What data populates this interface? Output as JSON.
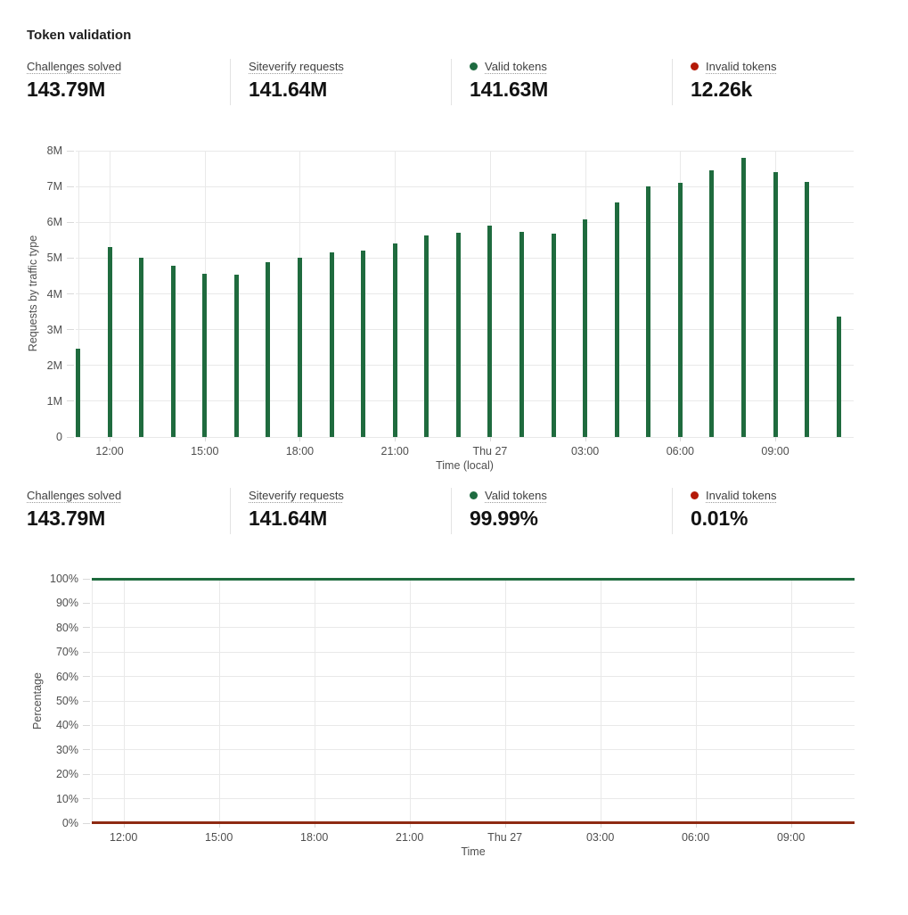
{
  "header": {
    "title": "Token validation"
  },
  "stats_top": [
    {
      "label": "Challenges solved",
      "value": "143.79M",
      "dot_color": null
    },
    {
      "label": "Siteverify requests",
      "value": "141.64M",
      "dot_color": null
    },
    {
      "label": "Valid tokens",
      "value": "141.63M",
      "dot_color": "#1e6b40"
    },
    {
      "label": "Invalid tokens",
      "value": "12.26k",
      "dot_color": "#b41907"
    }
  ],
  "stats_bottom": [
    {
      "label": "Challenges solved",
      "value": "143.79M",
      "dot_color": null
    },
    {
      "label": "Siteverify requests",
      "value": "141.64M",
      "dot_color": null
    },
    {
      "label": "Valid tokens",
      "value": "99.99%",
      "dot_color": "#1e6b40"
    },
    {
      "label": "Invalid tokens",
      "value": "0.01%",
      "dot_color": "#b41907"
    }
  ],
  "colors": {
    "green": "#1f6b3e",
    "dark_red": "#8e2a12",
    "grid": "#e9e9e9"
  },
  "chart_data": [
    {
      "type": "bar",
      "title": "",
      "ylabel": "Requests by traffic type",
      "xlabel": "Time (local)",
      "unit": "millions of requests",
      "ylim": [
        0,
        8
      ],
      "ytick_values": [
        0,
        1,
        2,
        3,
        4,
        5,
        6,
        7,
        8
      ],
      "ytick_labels": [
        "0",
        "1M",
        "2M",
        "3M",
        "4M",
        "5M",
        "6M",
        "7M",
        "8M"
      ],
      "categories": [
        "11:00",
        "12:00",
        "13:00",
        "14:00",
        "15:00",
        "16:00",
        "17:00",
        "18:00",
        "19:00",
        "20:00",
        "21:00",
        "22:00",
        "23:00",
        "00:00",
        "01:00",
        "02:00",
        "03:00",
        "04:00",
        "05:00",
        "06:00",
        "07:00",
        "08:00",
        "09:00",
        "10:00",
        "11:00"
      ],
      "values": [
        2.47,
        5.3,
        5.0,
        4.79,
        4.55,
        4.54,
        4.88,
        5.02,
        5.15,
        5.21,
        5.4,
        5.63,
        5.7,
        5.9,
        5.73,
        5.69,
        6.09,
        6.56,
        7.0,
        7.1,
        7.45,
        7.81,
        7.39,
        7.13,
        3.36
      ],
      "xtick_labels": [
        "12:00",
        "15:00",
        "18:00",
        "21:00",
        "Thu 27",
        "03:00",
        "06:00",
        "09:00"
      ],
      "xtick_indices": [
        1,
        4,
        7,
        10,
        13,
        16,
        19,
        22
      ],
      "color": "#1f6b3e",
      "grid": true,
      "legend": "none"
    },
    {
      "type": "line",
      "title": "",
      "ylabel": "Percentage",
      "xlabel": "Time",
      "ylim": [
        0,
        100
      ],
      "ytick_values": [
        0,
        10,
        20,
        30,
        40,
        50,
        60,
        70,
        80,
        90,
        100
      ],
      "ytick_labels": [
        "0%",
        "10%",
        "20%",
        "30%",
        "40%",
        "50%",
        "60%",
        "70%",
        "80%",
        "90%",
        "100%"
      ],
      "x": [
        "11:00",
        "12:00",
        "13:00",
        "14:00",
        "15:00",
        "16:00",
        "17:00",
        "18:00",
        "19:00",
        "20:00",
        "21:00",
        "22:00",
        "23:00",
        "00:00",
        "01:00",
        "02:00",
        "03:00",
        "04:00",
        "05:00",
        "06:00",
        "07:00",
        "08:00",
        "09:00",
        "10:00",
        "11:00"
      ],
      "series": [
        {
          "name": "Valid tokens",
          "color": "#1f6b3e",
          "constant_value_percent": 99.99
        },
        {
          "name": "Invalid tokens",
          "color": "#8e2a12",
          "constant_value_percent": 0.01
        }
      ],
      "xtick_labels": [
        "12:00",
        "15:00",
        "18:00",
        "21:00",
        "Thu 27",
        "03:00",
        "06:00",
        "09:00"
      ],
      "xtick_indices": [
        1,
        4,
        7,
        10,
        13,
        16,
        19,
        22
      ],
      "grid": true,
      "legend": "none"
    }
  ]
}
